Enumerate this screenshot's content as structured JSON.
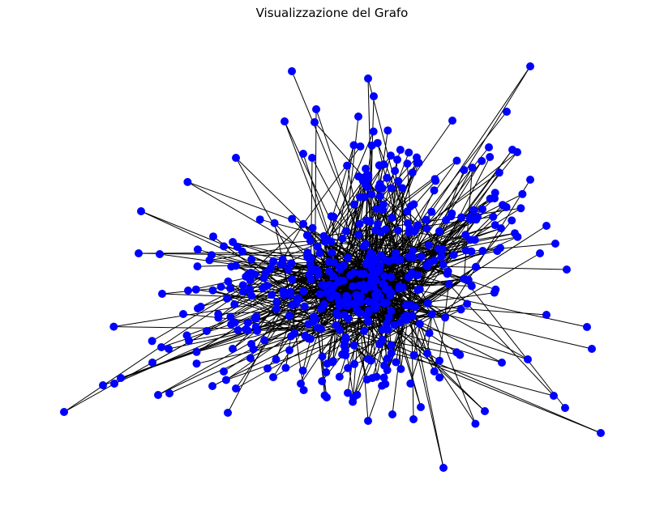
{
  "title": "Visualizzazione del Grafo",
  "colors": {
    "node_fill": "#0000ff",
    "edge": "#000000",
    "background": "#ffffff"
  },
  "graph": {
    "layout": "spring",
    "node_count": 500,
    "node_shape": "circle"
  }
}
